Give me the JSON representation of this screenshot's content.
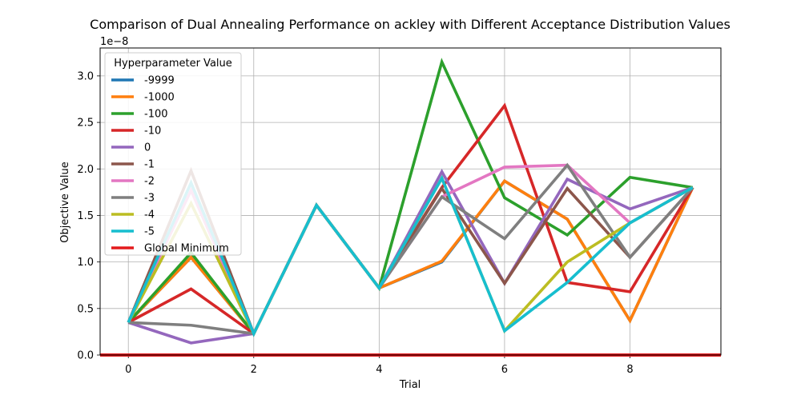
{
  "chart_data": {
    "type": "line",
    "title": "Comparison of Dual Annealing Performance on ackley with Different Acceptance Distribution Values",
    "xlabel": "Trial",
    "ylabel": "Objective Value",
    "y_offset_label": "1e−8",
    "xlim": [
      -0.45,
      9.45
    ],
    "ylim": [
      0,
      3.3
    ],
    "x_ticks": [
      0,
      2,
      4,
      6,
      8
    ],
    "y_ticks": [
      0.0,
      0.5,
      1.0,
      1.5,
      2.0,
      2.5,
      3.0
    ],
    "grid": true,
    "legend_title": "Hyperparameter Value",
    "legend_position": "upper-left",
    "x": [
      0,
      1,
      2,
      3,
      4,
      5,
      6,
      7,
      8,
      9
    ],
    "series": [
      {
        "name": "-9999",
        "color": "#1f77b4",
        "values": [
          0.35,
          1.05,
          0.23,
          1.61,
          0.72,
          1.0,
          1.87,
          1.46,
          0.37,
          1.8
        ]
      },
      {
        "name": "-1000",
        "color": "#ff7f0e",
        "values": [
          0.35,
          1.05,
          0.23,
          1.61,
          0.72,
          1.01,
          1.87,
          1.46,
          0.37,
          1.8
        ]
      },
      {
        "name": "-100",
        "color": "#2ca02c",
        "values": [
          0.35,
          1.1,
          0.23,
          1.61,
          0.72,
          3.15,
          1.69,
          1.29,
          1.91,
          1.8
        ]
      },
      {
        "name": "-10",
        "color": "#d62728",
        "values": [
          0.35,
          0.71,
          0.23,
          1.61,
          0.72,
          1.8,
          2.68,
          0.78,
          0.68,
          1.8
        ]
      },
      {
        "name": "0",
        "color": "#9467bd",
        "values": [
          0.35,
          0.13,
          0.23,
          1.61,
          0.72,
          1.97,
          0.77,
          1.89,
          1.57,
          1.8
        ]
      },
      {
        "name": "-1",
        "color": "#8c564b",
        "values": [
          0.35,
          1.98,
          0.23,
          1.61,
          0.72,
          1.79,
          0.77,
          1.79,
          1.05,
          1.8
        ]
      },
      {
        "name": "-2",
        "color": "#e377c2",
        "values": [
          0.35,
          1.77,
          0.23,
          1.61,
          0.72,
          1.7,
          2.02,
          2.04,
          1.42,
          1.8
        ]
      },
      {
        "name": "-3",
        "color": "#7f7f7f",
        "values": [
          0.35,
          0.32,
          0.23,
          1.61,
          0.72,
          1.7,
          1.25,
          2.04,
          1.05,
          1.8
        ]
      },
      {
        "name": "-4",
        "color": "#bcbd22",
        "values": [
          0.35,
          1.63,
          0.23,
          1.61,
          0.72,
          1.9,
          0.26,
          1.0,
          1.42,
          1.8
        ]
      },
      {
        "name": "-5",
        "color": "#17becf",
        "values": [
          0.35,
          1.85,
          0.23,
          1.61,
          0.72,
          1.9,
          0.26,
          0.78,
          1.42,
          1.8
        ]
      }
    ],
    "global_minimum": {
      "name": "Global Minimum",
      "color": "#e31a1c",
      "value": 0.0
    }
  }
}
